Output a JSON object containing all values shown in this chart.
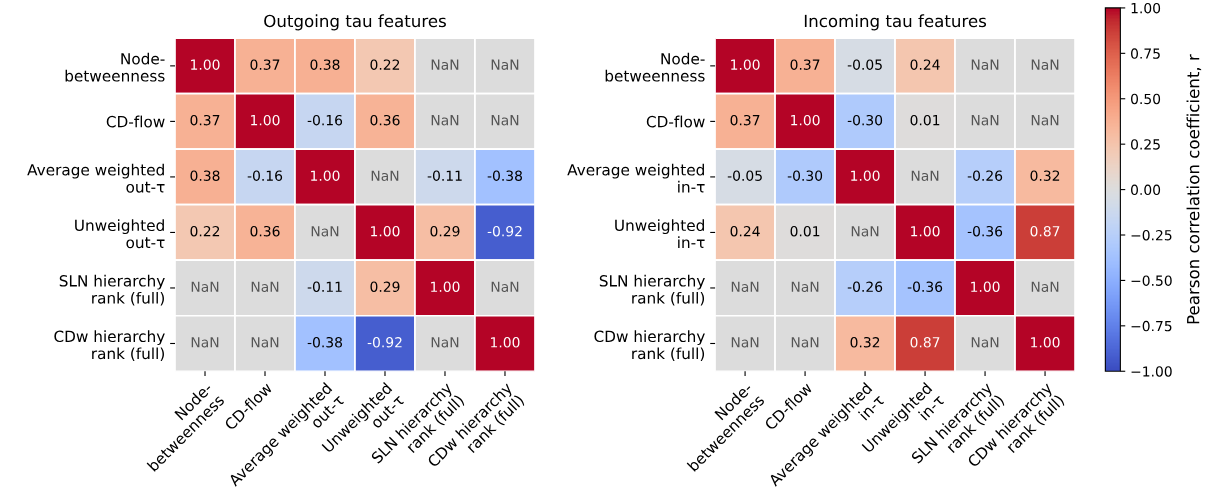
{
  "chart_data": [
    {
      "type": "heatmap",
      "title": "Outgoing tau features",
      "categories": [
        "Node-\nbetweenness",
        "CD-flow",
        "Average weighted\nout-τ",
        "Unweighted\nout-τ",
        "SLN hierarchy\nrank (full)",
        "CDw hierarchy\nrank (full)"
      ],
      "y_categories": [
        "Node-\nbetweenness",
        "CD-flow",
        "Average weighted\nout-τ",
        "Unweighted\nout-τ",
        "SLN hierarchy\nrank (full)",
        "CDw hierarchy\nrank (full)"
      ],
      "cells": [
        [
          1.0,
          0.37,
          0.38,
          0.22,
          null,
          null
        ],
        [
          0.37,
          1.0,
          -0.16,
          0.36,
          null,
          null
        ],
        [
          0.38,
          -0.16,
          1.0,
          null,
          -0.11,
          -0.38
        ],
        [
          0.22,
          0.36,
          null,
          1.0,
          0.29,
          -0.92
        ],
        [
          null,
          null,
          -0.11,
          0.29,
          1.0,
          null
        ],
        [
          null,
          null,
          -0.38,
          -0.92,
          null,
          1.0
        ]
      ],
      "cell_labels": [
        [
          "1.00",
          "0.37",
          "0.38",
          "0.22",
          "NaN",
          "NaN"
        ],
        [
          "0.37",
          "1.00",
          "-0.16",
          "0.36",
          "NaN",
          "NaN"
        ],
        [
          "0.38",
          "-0.16",
          "1.00",
          "NaN",
          "-0.11",
          "-0.38"
        ],
        [
          "0.22",
          "0.36",
          "NaN",
          "1.00",
          "0.29",
          "-0.92"
        ],
        [
          "NaN",
          "NaN",
          "-0.11",
          "0.29",
          "1.00",
          "NaN"
        ],
        [
          "NaN",
          "NaN",
          "-0.38",
          "-0.92",
          "NaN",
          "1.00"
        ]
      ]
    },
    {
      "type": "heatmap",
      "title": "Incoming tau features",
      "categories": [
        "Node-\nbetweenness",
        "CD-flow",
        "Average weighted\nin-τ",
        "Unweighted\nin-τ",
        "SLN hierarchy\nrank (full)",
        "CDw hierarchy\nrank (full)"
      ],
      "y_categories": [
        "Node-\nbetweenness",
        "CD-flow",
        "Average weighted\nin-τ",
        "Unweighted\nin-τ",
        "SLN hierarchy\nrank (full)",
        "CDw hierarchy\nrank (full)"
      ],
      "cells": [
        [
          1.0,
          0.37,
          -0.05,
          0.24,
          null,
          null
        ],
        [
          0.37,
          1.0,
          -0.3,
          0.01,
          null,
          null
        ],
        [
          -0.05,
          -0.3,
          1.0,
          null,
          -0.26,
          0.32
        ],
        [
          0.24,
          0.01,
          null,
          1.0,
          -0.36,
          0.87
        ],
        [
          null,
          null,
          -0.26,
          -0.36,
          1.0,
          null
        ],
        [
          null,
          null,
          0.32,
          0.87,
          null,
          1.0
        ]
      ],
      "cell_labels": [
        [
          "1.00",
          "0.37",
          "-0.05",
          "0.24",
          "NaN",
          "NaN"
        ],
        [
          "0.37",
          "1.00",
          "-0.30",
          "0.01",
          "NaN",
          "NaN"
        ],
        [
          "-0.05",
          "-0.30",
          "1.00",
          "NaN",
          "-0.26",
          "0.32"
        ],
        [
          "0.24",
          "0.01",
          "NaN",
          "1.00",
          "-0.36",
          "0.87"
        ],
        [
          "NaN",
          "NaN",
          "-0.26",
          "-0.36",
          "1.00",
          "NaN"
        ],
        [
          "NaN",
          "NaN",
          "0.32",
          "0.87",
          "NaN",
          "1.00"
        ]
      ],
      "clim": [
        -1,
        1
      ],
      "cticks": [
        {
          "value": -1,
          "label": "−1.00"
        },
        {
          "value": -0.75,
          "label": "−0.75"
        },
        {
          "value": -0.5,
          "label": "−0.50"
        },
        {
          "value": -0.25,
          "label": "−0.25"
        },
        {
          "value": 0,
          "label": "0.00"
        },
        {
          "value": 0.25,
          "label": "0.25"
        },
        {
          "value": 0.5,
          "label": "0.50"
        },
        {
          "value": 0.75,
          "label": "0.75"
        },
        {
          "value": 1,
          "label": "1.00"
        }
      ],
      "clabel": "Pearson correlation coefficient, r"
    }
  ]
}
